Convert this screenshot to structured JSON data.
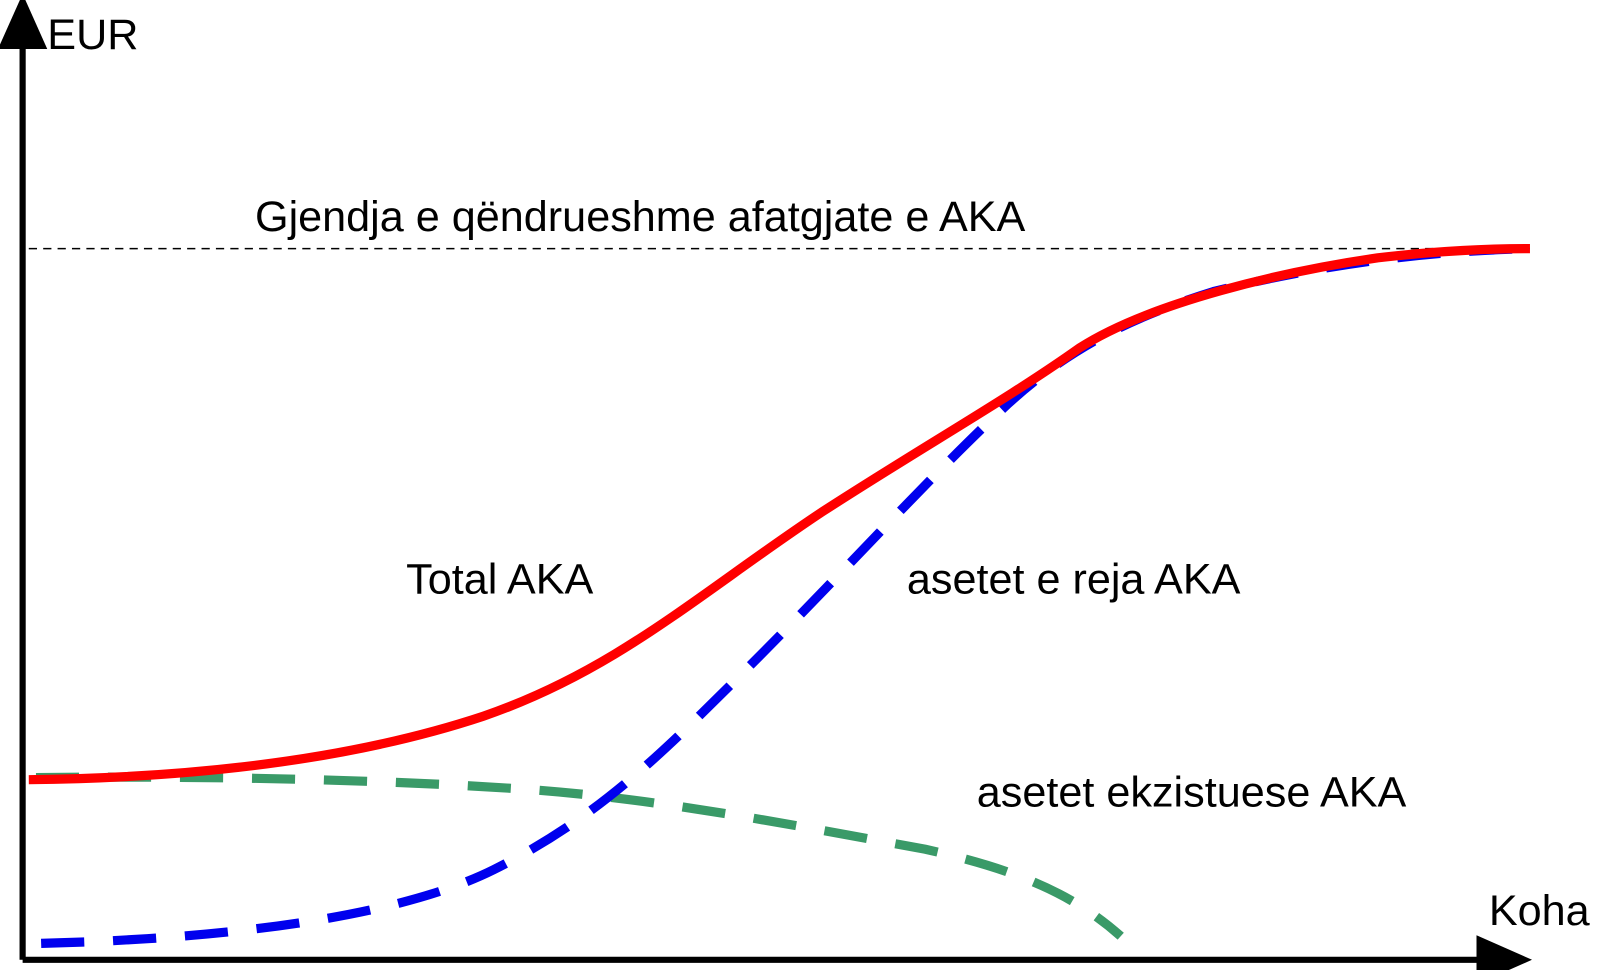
{
  "axes": {
    "y_label": "EUR",
    "x_label": "Koha"
  },
  "reference_label": "Gjendja e qëndrueshme afatgjate e AKA",
  "curves": [
    {
      "label": "Total AKA"
    },
    {
      "label": "asetet e reja AKA"
    },
    {
      "label": "asetet ekzistuese AKA"
    }
  ]
}
